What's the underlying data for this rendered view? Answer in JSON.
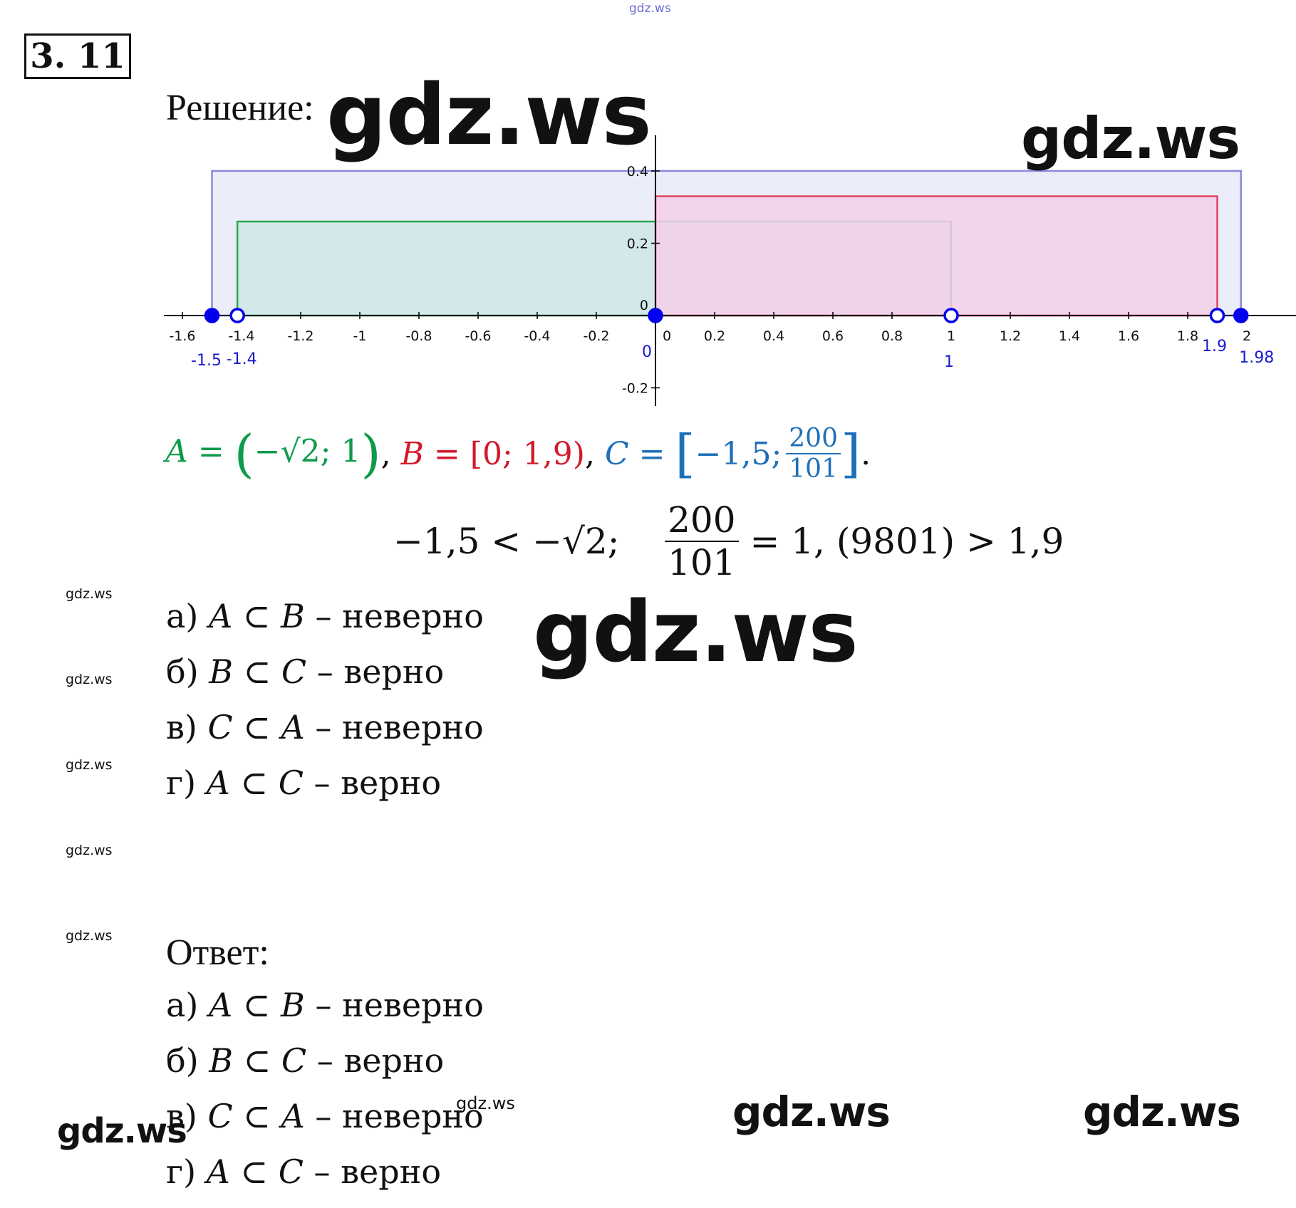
{
  "header": {
    "top_watermark": "gdz.ws",
    "problem_number": "3. 11",
    "solution_label": "Решение:"
  },
  "watermarks": {
    "big_1": "gdz.ws",
    "big_2": "gdz.ws",
    "big_3": "gdz.ws",
    "mid_1": "gdz.ws",
    "mid_2": "gdz.ws",
    "mid_3": "gdz.ws",
    "small": [
      "gdz.ws",
      "gdz.ws",
      "gdz.ws",
      "gdz.ws",
      "gdz.ws"
    ],
    "tiny": "gdz.ws"
  },
  "colors": {
    "A": "#0e9a4a",
    "B": "#d21a2a",
    "C": "#1e6fb8",
    "axis": "#000000",
    "point": "#0000ee"
  },
  "chart_data": {
    "type": "interval-diagram",
    "x_range": [
      -1.65,
      2.13
    ],
    "y_range": [
      -0.24,
      0.45
    ],
    "x_ticks": [
      "-1.6",
      "-1.4",
      "-1.2",
      "-1",
      "-0.8",
      "-0.6",
      "-0.4",
      "-0.2",
      "0",
      "0.2",
      "0.4",
      "0.6",
      "0.8",
      "1",
      "1.2",
      "1.4",
      "1.6",
      "1.8",
      "2"
    ],
    "y_ticks": [
      "0.4",
      "0.2",
      "0",
      "-0.2"
    ],
    "intervals": [
      {
        "set": "C",
        "from": -1.5,
        "to": 1.98,
        "height": 0.4,
        "fill": "#e9eaf9",
        "stroke": "#8a8ae0"
      },
      {
        "set": "A",
        "from": -1.414,
        "to": 1,
        "height": 0.26,
        "fill": "#cfe6e6",
        "stroke": "#2aa84a"
      },
      {
        "set": "B",
        "from": 0,
        "to": 1.9,
        "height": 0.33,
        "fill": "#f3cfe9",
        "stroke": "#e04466"
      }
    ],
    "points": [
      {
        "x": -1.5,
        "filled": true,
        "label": "-1.5"
      },
      {
        "x": -1.414,
        "filled": false,
        "label": "-1.4"
      },
      {
        "x": 0,
        "filled": true,
        "label": "0"
      },
      {
        "x": 1,
        "filled": false,
        "label": "1"
      },
      {
        "x": 1.9,
        "filled": false,
        "label": "1.9"
      },
      {
        "x": 1.98,
        "filled": true,
        "label": "1.98"
      }
    ]
  },
  "sets_line": {
    "A_label": "A",
    "eq": "=",
    "A_open": "(",
    "A_left": "−√2",
    "sep": ";",
    "A_right": "1",
    "A_close": ")",
    "comma": ",",
    "B_label": "B",
    "B_open": "[",
    "B_left": "0",
    "B_right": "1,9",
    "B_close": ")",
    "C_label": "C",
    "C_open": "[",
    "C_left": "−1,5",
    "C_num": "200",
    "C_den": "101",
    "C_close": "]",
    "period": "."
  },
  "comparison_line": {
    "left": "−1,5 < −√2;",
    "num": "200",
    "den": "101",
    "right": "= 1, (9801) > 1,9"
  },
  "solution_items": [
    {
      "prefix": "а)",
      "lhs": "A",
      "op": "⊂",
      "rhs": "B",
      "verdict": "– неверно"
    },
    {
      "prefix": "б)",
      "lhs": "B",
      "op": "⊂",
      "rhs": "C",
      "verdict": "– верно"
    },
    {
      "prefix": "в)",
      "lhs": "C",
      "op": "⊂",
      "rhs": "A",
      "verdict": "– неверно"
    },
    {
      "prefix": "г)",
      "lhs": "A",
      "op": "⊂",
      "rhs": "C",
      "verdict": "– верно"
    }
  ],
  "answer": {
    "label": "Ответ:",
    "items": [
      {
        "prefix": "а)",
        "lhs": "A",
        "op": "⊂",
        "rhs": "B",
        "verdict": "– неверно"
      },
      {
        "prefix": "б)",
        "lhs": "B",
        "op": "⊂",
        "rhs": "C",
        "verdict": "– верно"
      },
      {
        "prefix": "в)",
        "lhs": "C",
        "op": "⊂",
        "rhs": "A",
        "verdict": "– неверно"
      },
      {
        "prefix": "г)",
        "lhs": "A",
        "op": "⊂",
        "rhs": "C",
        "verdict": "– верно"
      }
    ]
  }
}
